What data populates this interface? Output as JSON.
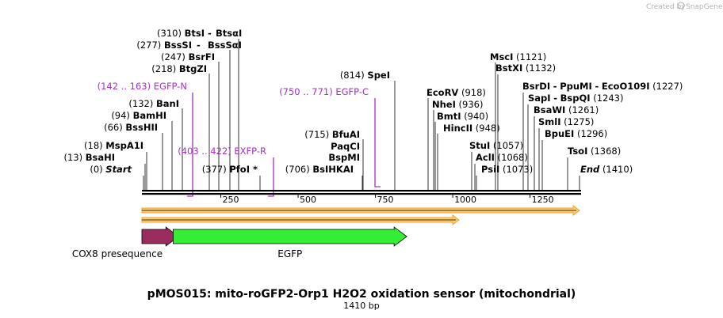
{
  "credit": {
    "created_by": "Created by",
    "brand": "SnapGene"
  },
  "title": "pMOS015: mito-roGFP2-Orp1 H2O2 oxidation sensor (mitochondrial)",
  "size_label": "1410 bp",
  "axis": {
    "total_bp": 1410,
    "ticks": [
      "250",
      "500",
      "750",
      "1000",
      "1250"
    ]
  },
  "ends": {
    "start": "Start",
    "start_pos": "(0)",
    "end": "End",
    "end_pos": "(1410)"
  },
  "sites_left": [
    {
      "pos": "(310)",
      "name": "BtsI",
      "sep": "-",
      "name2": "BtsαI"
    },
    {
      "pos": "(277)",
      "name": "BssSI",
      "sep": "-",
      "name2": "BssSαI"
    },
    {
      "pos": "(247)",
      "name": "BsrFI"
    },
    {
      "pos": "(218)",
      "name": "BtgZI"
    },
    {
      "pos": "(132)",
      "name": "BanI"
    },
    {
      "pos": "(94)",
      "name": "BamHI"
    },
    {
      "pos": "(66)",
      "name": "BssHII"
    },
    {
      "pos": "(18)",
      "name": "MspA1I"
    },
    {
      "pos": "(13)",
      "name": "BsaHI"
    },
    {
      "pos": "(377)",
      "name": "PfoI *"
    },
    {
      "pos": "(715)",
      "name": "BfuAI"
    },
    {
      "name": "PaqCI"
    },
    {
      "name": "BspMI"
    },
    {
      "pos": "(706)",
      "name": "BsIHKAI"
    },
    {
      "pos": "(814)",
      "name": "SpeI"
    }
  ],
  "sites_right": [
    {
      "name": "MscI",
      "pos": "(1121)"
    },
    {
      "name": "BstXI",
      "pos": "(1132)"
    },
    {
      "name": "BsrDI",
      "sep": "-",
      "name2": "PpuMI",
      "sep2": "-",
      "name3": "EcoO109I",
      "pos": "(1227)"
    },
    {
      "name": "SapI",
      "sep": "-",
      "name2": "BspQI",
      "pos": "(1243)"
    },
    {
      "name": "BsaWI",
      "pos": "(1261)"
    },
    {
      "name": "SmlI",
      "pos": "(1275)"
    },
    {
      "name": "BpuEI",
      "pos": "(1296)"
    },
    {
      "name": "TsoI",
      "pos": "(1368)"
    },
    {
      "name": "EcoRV",
      "pos": "(918)"
    },
    {
      "name": "NheI",
      "pos": "(936)"
    },
    {
      "name": "BmtI",
      "pos": "(940)"
    },
    {
      "name": "HincII",
      "pos": "(948)"
    },
    {
      "name": "StuI",
      "pos": "(1057)"
    },
    {
      "name": "AclI",
      "pos": "(1068)"
    },
    {
      "name": "PsiI",
      "pos": "(1073)"
    }
  ],
  "primers": [
    {
      "range": "(142 .. 163)",
      "name": "EGFP-N"
    },
    {
      "range": "(403 .. 422)",
      "name": "EXFP-R"
    },
    {
      "range": "(750 .. 771)",
      "name": "EGFP-C"
    }
  ],
  "features": [
    {
      "name": "COX8 presequence",
      "start": 0,
      "end": 75,
      "color": "#9b2c5e"
    },
    {
      "name": "EGFP",
      "start": 101,
      "end": 813,
      "color": "#33ee33"
    }
  ],
  "orf": {
    "start": 0,
    "end": 1410,
    "color": "#f0a030"
  },
  "colors": {
    "primer": "#a331c4",
    "backbone": "#000000"
  }
}
